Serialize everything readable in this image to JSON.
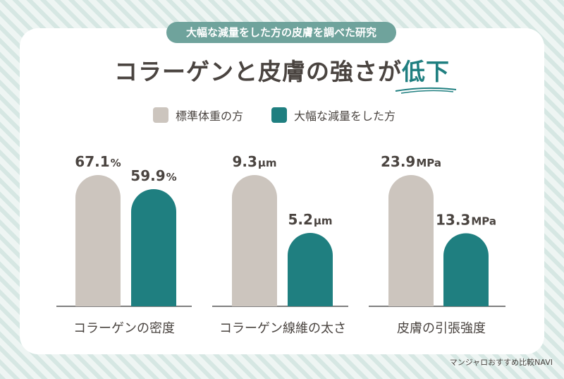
{
  "header": {
    "badge": "大幅な減量をした方の皮膚を調べた研究",
    "title_main": "コラーゲンと皮膚の強さが",
    "title_accent": "低下"
  },
  "legend": [
    {
      "label": "標準体重の方",
      "color": "#ccc5be"
    },
    {
      "label": "大幅な減量をした方",
      "color": "#1f7f80"
    }
  ],
  "footer": "マンジャロおすすめ比較NAVI",
  "chart_data": [
    {
      "type": "bar",
      "categories": [
        "標準体重の方",
        "大幅な減量をした方"
      ],
      "xlabel": "コラーゲンの密度",
      "values": [
        67.1,
        59.9
      ],
      "unit": "%",
      "value_labels": [
        "67.1",
        "59.9"
      ]
    },
    {
      "type": "bar",
      "categories": [
        "標準体重の方",
        "大幅な減量をした方"
      ],
      "xlabel": "コラーゲン線維の太さ",
      "values": [
        9.3,
        5.2
      ],
      "unit": "μm",
      "value_labels": [
        "9.3",
        "5.2"
      ]
    },
    {
      "type": "bar",
      "categories": [
        "標準体重の方",
        "大幅な減量をした方"
      ],
      "xlabel": "皮膚の引張強度",
      "values": [
        23.9,
        13.3
      ],
      "unit": "MPa",
      "value_labels": [
        "23.9",
        "13.3"
      ]
    }
  ]
}
